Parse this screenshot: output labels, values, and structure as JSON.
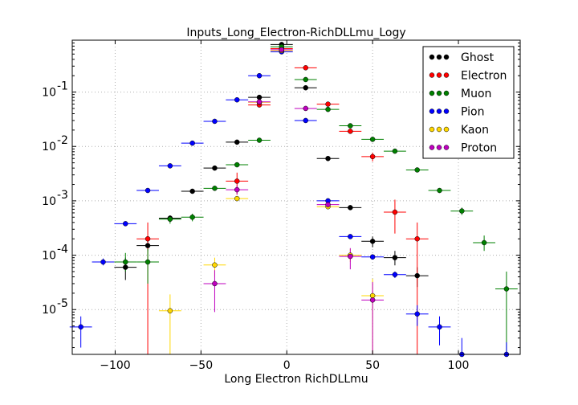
{
  "chart_data": {
    "type": "scatter",
    "title": "Inputs_Long_Electron-RichDLLmu_Logy",
    "xlabel": "Long Electron RichDLLmu",
    "ylabel": "",
    "xlim": [
      -125,
      136
    ],
    "ylim": [
      1.5e-06,
      0.9
    ],
    "yscale": "log",
    "grid": true,
    "legend_position": "top-right",
    "x_ticks": [
      -100,
      -50,
      0,
      50,
      100
    ],
    "x_tick_labels": [
      "−100",
      "−50",
      "0",
      "50",
      "100"
    ],
    "y_ticks": [
      1e-05,
      0.0001,
      0.001,
      0.01,
      0.1
    ],
    "y_tick_labels": [
      {
        "base": "10",
        "exp": "-5"
      },
      {
        "base": "10",
        "exp": "-4"
      },
      {
        "base": "10",
        "exp": "-3"
      },
      {
        "base": "10",
        "exp": "-2"
      },
      {
        "base": "10",
        "exp": "-1"
      }
    ],
    "x_halfwidth": 6.5,
    "series": [
      {
        "name": "Ghost",
        "color": "#000000",
        "points": [
          {
            "x": -94,
            "y": 6e-05,
            "lo": 3.5e-05,
            "hi": 9e-05
          },
          {
            "x": -81,
            "y": 0.00015,
            "lo": 0.00012,
            "hi": 0.00019
          },
          {
            "x": -68,
            "y": 0.00048,
            "lo": 0.00042,
            "hi": 0.00054
          },
          {
            "x": -55,
            "y": 0.0015,
            "lo": 0.00135,
            "hi": 0.00165
          },
          {
            "x": -42,
            "y": 0.004,
            "lo": 0.0037,
            "hi": 0.0043
          },
          {
            "x": -29,
            "y": 0.012,
            "lo": 0.0114,
            "hi": 0.0126
          },
          {
            "x": -16,
            "y": 0.08,
            "lo": 0.078,
            "hi": 0.082
          },
          {
            "x": -3,
            "y": 0.75,
            "lo": 0.74,
            "hi": 0.76
          },
          {
            "x": 11,
            "y": 0.12,
            "lo": 0.117,
            "hi": 0.123
          },
          {
            "x": 24,
            "y": 0.006,
            "lo": 0.0057,
            "hi": 0.0063
          },
          {
            "x": 37,
            "y": 0.00075,
            "lo": 0.00068,
            "hi": 0.00082
          },
          {
            "x": 50,
            "y": 0.00018,
            "lo": 0.00014,
            "hi": 0.00022
          },
          {
            "x": 63,
            "y": 9e-05,
            "lo": 6.5e-05,
            "hi": 0.00012
          },
          {
            "x": 76,
            "y": 4.2e-05,
            "lo": 2.6e-05,
            "hi": 6e-05
          }
        ]
      },
      {
        "name": "Electron",
        "color": "#ff0000",
        "points": [
          {
            "x": -81,
            "y": 0.0002,
            "lo": 1.5e-06,
            "hi": 0.0004
          },
          {
            "x": -29,
            "y": 0.0023,
            "lo": 0.0013,
            "hi": 0.0033
          },
          {
            "x": -16,
            "y": 0.058,
            "lo": 0.054,
            "hi": 0.062
          },
          {
            "x": -3,
            "y": 0.63,
            "lo": 0.62,
            "hi": 0.64
          },
          {
            "x": 11,
            "y": 0.28,
            "lo": 0.275,
            "hi": 0.285
          },
          {
            "x": 24,
            "y": 0.06,
            "lo": 0.057,
            "hi": 0.063
          },
          {
            "x": 37,
            "y": 0.019,
            "lo": 0.0178,
            "hi": 0.0202
          },
          {
            "x": 50,
            "y": 0.0065,
            "lo": 0.0053,
            "hi": 0.0077
          },
          {
            "x": 63,
            "y": 0.00062,
            "lo": 0.00025,
            "hi": 0.00105
          },
          {
            "x": 76,
            "y": 0.0002,
            "lo": 1.5e-06,
            "hi": 0.0004
          }
        ]
      },
      {
        "name": "Muon",
        "color": "#008000",
        "points": [
          {
            "x": -94,
            "y": 7.5e-05,
            "lo": 5e-05,
            "hi": 0.00011
          },
          {
            "x": -81,
            "y": 7.5e-05,
            "lo": 3e-05,
            "hi": 0.00013
          },
          {
            "x": -68,
            "y": 0.00046,
            "lo": 0.00038,
            "hi": 0.00054
          },
          {
            "x": -55,
            "y": 0.0005,
            "lo": 0.00042,
            "hi": 0.00058
          },
          {
            "x": -42,
            "y": 0.0017,
            "lo": 0.00155,
            "hi": 0.00185
          },
          {
            "x": -29,
            "y": 0.0046,
            "lo": 0.00435,
            "hi": 0.00485
          },
          {
            "x": -16,
            "y": 0.013,
            "lo": 0.0125,
            "hi": 0.0135
          },
          {
            "x": -3,
            "y": 0.68,
            "lo": 0.67,
            "hi": 0.69
          },
          {
            "x": 11,
            "y": 0.17,
            "lo": 0.167,
            "hi": 0.173
          },
          {
            "x": 24,
            "y": 0.048,
            "lo": 0.0468,
            "hi": 0.0492
          },
          {
            "x": 37,
            "y": 0.024,
            "lo": 0.0232,
            "hi": 0.0248
          },
          {
            "x": 50,
            "y": 0.0135,
            "lo": 0.0129,
            "hi": 0.0141
          },
          {
            "x": 63,
            "y": 0.0082,
            "lo": 0.0077,
            "hi": 0.0087
          },
          {
            "x": 76,
            "y": 0.0037,
            "lo": 0.0034,
            "hi": 0.004
          },
          {
            "x": 89,
            "y": 0.00155,
            "lo": 0.0014,
            "hi": 0.0017
          },
          {
            "x": 102,
            "y": 0.00065,
            "lo": 0.00055,
            "hi": 0.00075
          },
          {
            "x": 115,
            "y": 0.00017,
            "lo": 0.00012,
            "hi": 0.00023
          },
          {
            "x": 128,
            "y": 2.4e-05,
            "lo": 1.5e-06,
            "hi": 5e-05
          }
        ]
      },
      {
        "name": "Pion",
        "color": "#0000ff",
        "points": [
          {
            "x": -120,
            "y": 4.8e-06,
            "lo": 2e-06,
            "hi": 7.5e-06
          },
          {
            "x": -107,
            "y": 7.5e-05,
            "lo": 6.5e-05,
            "hi": 8.7e-05
          },
          {
            "x": -94,
            "y": 0.00038,
            "lo": 0.00035,
            "hi": 0.00041
          },
          {
            "x": -81,
            "y": 0.00155,
            "lo": 0.00148,
            "hi": 0.00162
          },
          {
            "x": -68,
            "y": 0.0044,
            "lo": 0.00425,
            "hi": 0.00455
          },
          {
            "x": -55,
            "y": 0.0115,
            "lo": 0.0112,
            "hi": 0.0118
          },
          {
            "x": -42,
            "y": 0.029,
            "lo": 0.0285,
            "hi": 0.0295
          },
          {
            "x": -29,
            "y": 0.072,
            "lo": 0.071,
            "hi": 0.073
          },
          {
            "x": -16,
            "y": 0.2,
            "lo": 0.198,
            "hi": 0.202
          },
          {
            "x": -3,
            "y": 0.55,
            "lo": 0.545,
            "hi": 0.555
          },
          {
            "x": 11,
            "y": 0.03,
            "lo": 0.0295,
            "hi": 0.0305
          },
          {
            "x": 24,
            "y": 0.001,
            "lo": 0.00095,
            "hi": 0.00105
          },
          {
            "x": 37,
            "y": 0.00022,
            "lo": 0.000205,
            "hi": 0.000235
          },
          {
            "x": 50,
            "y": 9.3e-05,
            "lo": 8.3e-05,
            "hi": 0.000103
          },
          {
            "x": 63,
            "y": 4.4e-05,
            "lo": 3.8e-05,
            "hi": 5e-05
          },
          {
            "x": 76,
            "y": 8.3e-06,
            "lo": 5e-06,
            "hi": 1.2e-05
          },
          {
            "x": 89,
            "y": 4.8e-06,
            "lo": 2.2e-06,
            "hi": 7.5e-06
          },
          {
            "x": 102,
            "y": 1.5e-06,
            "lo": 1.5e-06,
            "hi": 3e-06
          },
          {
            "x": 128,
            "y": 1.5e-06,
            "lo": 1.5e-06,
            "hi": 2.5e-06
          }
        ]
      },
      {
        "name": "Kaon",
        "color": "#ffd700",
        "points": [
          {
            "x": -68,
            "y": 9.5e-06,
            "lo": 1.5e-06,
            "hi": 1.9e-05
          },
          {
            "x": -42,
            "y": 6.6e-05,
            "lo": 4e-05,
            "hi": 9e-05
          },
          {
            "x": -29,
            "y": 0.0011,
            "lo": 0.00102,
            "hi": 0.00118
          },
          {
            "x": -16,
            "y": 0.065,
            "lo": 0.0632,
            "hi": 0.0668
          },
          {
            "x": -3,
            "y": 0.58,
            "lo": 0.575,
            "hi": 0.585
          },
          {
            "x": 24,
            "y": 0.00078,
            "lo": 0.00071,
            "hi": 0.00085
          },
          {
            "x": 37,
            "y": 0.0001,
            "lo": 7.5e-05,
            "hi": 0.00013
          },
          {
            "x": 50,
            "y": 1.8e-05,
            "lo": 1.5e-06,
            "hi": 3.7e-05
          }
        ]
      },
      {
        "name": "Proton",
        "color": "#bf00bf",
        "points": [
          {
            "x": -42,
            "y": 3e-05,
            "lo": 9e-06,
            "hi": 5.3e-05
          },
          {
            "x": -29,
            "y": 0.0016,
            "lo": 0.0013,
            "hi": 0.0019
          },
          {
            "x": -16,
            "y": 0.066,
            "lo": 0.063,
            "hi": 0.069
          },
          {
            "x": -3,
            "y": 0.6,
            "lo": 0.59,
            "hi": 0.61
          },
          {
            "x": 11,
            "y": 0.05,
            "lo": 0.048,
            "hi": 0.052
          },
          {
            "x": 24,
            "y": 0.00085,
            "lo": 0.00073,
            "hi": 0.00097
          },
          {
            "x": 37,
            "y": 9.5e-05,
            "lo": 5.5e-05,
            "hi": 0.000135
          },
          {
            "x": 50,
            "y": 1.5e-05,
            "lo": 1.5e-06,
            "hi": 3.2e-05
          }
        ]
      }
    ]
  }
}
